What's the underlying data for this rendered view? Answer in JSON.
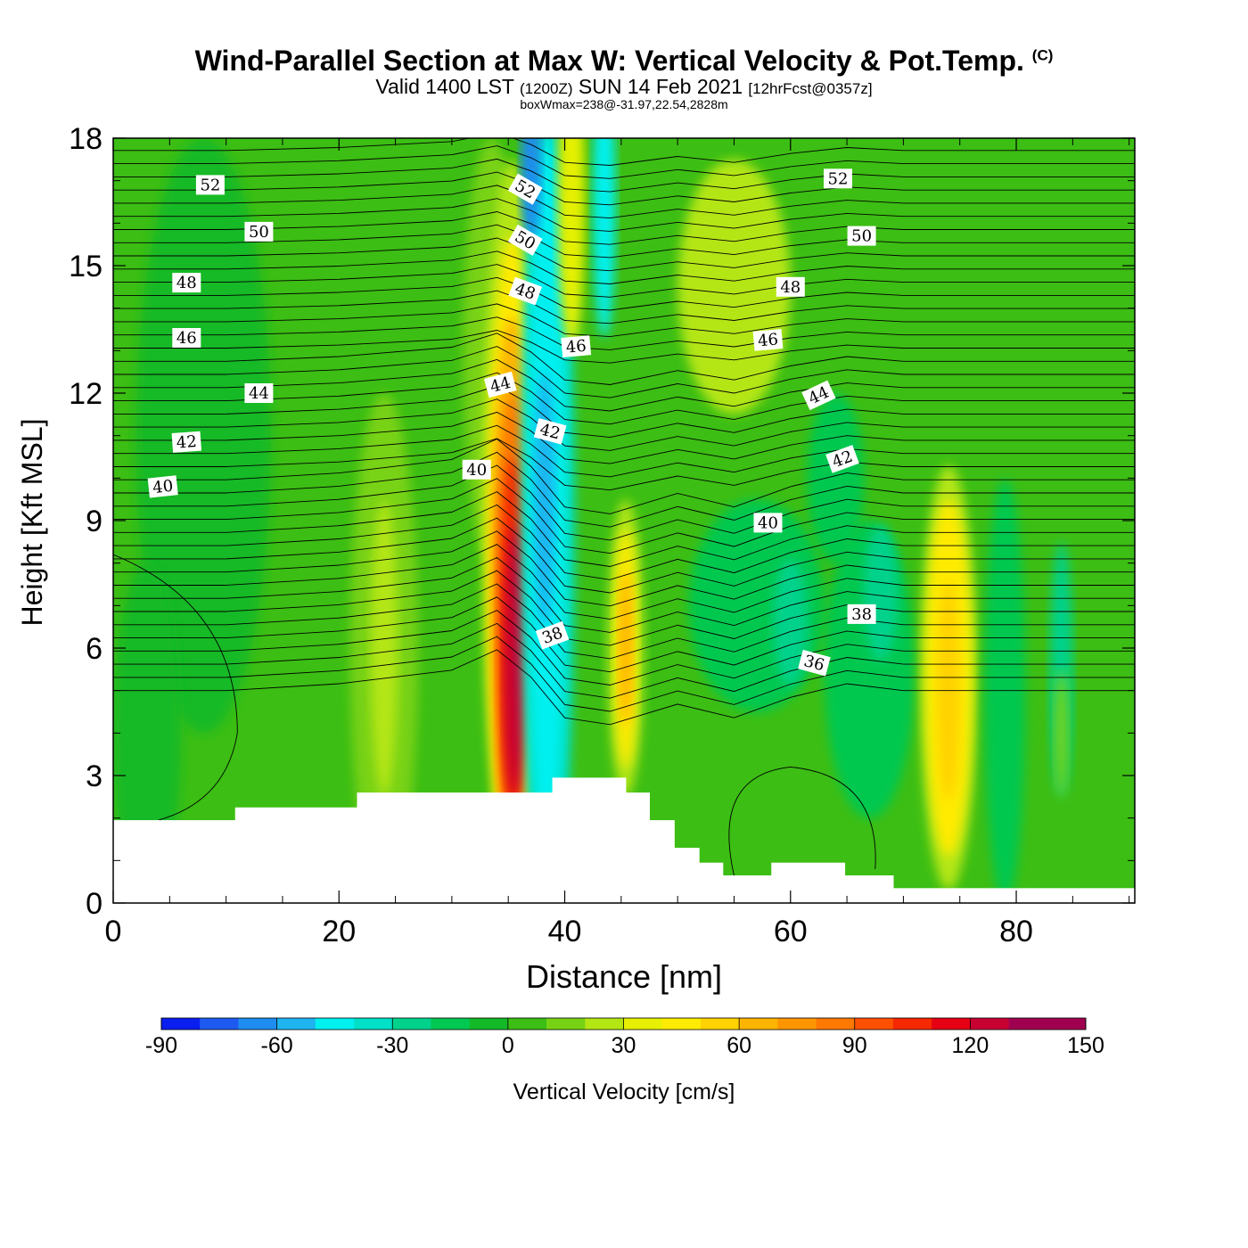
{
  "header": {
    "title": "Wind-Parallel Section at Max W: Vertical Velocity & Pot.Temp.",
    "copyright": "(C)",
    "subtitle_pre": "Valid 1400 LST",
    "subtitle_utc": "(1200Z)",
    "subtitle_date": "SUN 14 Feb 2021",
    "subtitle_fcst": "[12hrFcst@0357z]",
    "box_info": "boxWmax=238@-31.97,22.54,2828m"
  },
  "chart_data": {
    "type": "heatmap",
    "title": "Wind-Parallel Section at Max W: Vertical Velocity & Pot.Temp.",
    "xlabel": "Distance [nm]",
    "ylabel": "Height [Kft MSL]",
    "xlim": [
      0,
      90.5
    ],
    "ylim": [
      0,
      18
    ],
    "x_ticks": [
      0,
      20,
      40,
      60,
      80
    ],
    "y_ticks": [
      0,
      3,
      6,
      9,
      12,
      15,
      18
    ],
    "colorbar": {
      "label": "Vertical Velocity [cm/s]",
      "levels": [
        -90,
        -80,
        -70,
        -60,
        -50,
        -40,
        -30,
        -20,
        -10,
        0,
        10,
        20,
        30,
        40,
        50,
        60,
        70,
        80,
        90,
        100,
        110,
        120,
        130,
        140,
        150
      ],
      "tick_labels": [
        "-90",
        "-60",
        "-30",
        "0",
        "30",
        "60",
        "90",
        "120",
        "150"
      ],
      "colors": [
        "#0a1ef0",
        "#1e5af0",
        "#1e8cf0",
        "#1eb4f0",
        "#00f0f0",
        "#00e0c8",
        "#00d28c",
        "#00c850",
        "#14b928",
        "#3cbe14",
        "#78d214",
        "#b4e614",
        "#e6f000",
        "#ffeb00",
        "#ffd200",
        "#ffb400",
        "#ff9600",
        "#ff7800",
        "#ff5000",
        "#f52800",
        "#e60014",
        "#c80032",
        "#a00050",
        "#a00050"
      ]
    },
    "vertical_velocity_features": [
      {
        "name": "strong updraft",
        "x": 35.5,
        "z_range": [
          2.6,
          10.5
        ],
        "max_cm_s": 150
      },
      {
        "name": "downdraft",
        "x": 38.5,
        "z_range": [
          3,
          18
        ],
        "min_cm_s": -80
      },
      {
        "name": "upper updraft",
        "x": 40.5,
        "z_range": [
          14,
          18
        ],
        "max_cm_s": 40
      },
      {
        "name": "updraft",
        "x": 45.5,
        "z_range": [
          2.5,
          9
        ],
        "max_cm_s": 45
      },
      {
        "name": "updraft",
        "x": 74,
        "z_range": [
          1,
          9
        ],
        "max_cm_s": 50
      },
      {
        "name": "weak updraft",
        "x": 24,
        "z_range": [
          3,
          9.5
        ],
        "max_cm_s": 25
      }
    ],
    "terrain_kft": [
      {
        "x": [
          0,
          10.8
        ],
        "z": 1.95
      },
      {
        "x": [
          10.8,
          21.6
        ],
        "z": 2.25
      },
      {
        "x": [
          21.6,
          38.9
        ],
        "z": 2.6
      },
      {
        "x": [
          38.9,
          45.4
        ],
        "z": 2.95
      },
      {
        "x": [
          45.4,
          47.5
        ],
        "z": 2.6
      },
      {
        "x": [
          47.5,
          49.7
        ],
        "z": 1.95
      },
      {
        "x": [
          49.7,
          51.9
        ],
        "z": 1.3
      },
      {
        "x": [
          51.9,
          54.0
        ],
        "z": 0.95
      },
      {
        "x": [
          54.0,
          58.3
        ],
        "z": 0.65
      },
      {
        "x": [
          58.3,
          64.8
        ],
        "z": 0.95
      },
      {
        "x": [
          64.8,
          69.1
        ],
        "z": 0.65
      },
      {
        "x": [
          69.1,
          90.5
        ],
        "z": 0.35
      }
    ],
    "potential_temperature_labels": [
      {
        "value": "52",
        "x": 8.6,
        "z": 16.9,
        "rot": 0
      },
      {
        "value": "50",
        "x": 12.9,
        "z": 15.8,
        "rot": 0
      },
      {
        "value": "48",
        "x": 6.5,
        "z": 14.6,
        "rot": 0
      },
      {
        "value": "46",
        "x": 6.5,
        "z": 13.3,
        "rot": 0
      },
      {
        "value": "44",
        "x": 12.9,
        "z": 12.0,
        "rot": 0
      },
      {
        "value": "42",
        "x": 6.5,
        "z": 10.85,
        "rot": -4
      },
      {
        "value": "40",
        "x": 4.4,
        "z": 9.8,
        "rot": -6
      },
      {
        "value": "52",
        "x": 36.5,
        "z": 16.8,
        "rot": 30
      },
      {
        "value": "50",
        "x": 36.5,
        "z": 15.6,
        "rot": 30
      },
      {
        "value": "48",
        "x": 36.5,
        "z": 14.4,
        "rot": 20
      },
      {
        "value": "46",
        "x": 41.0,
        "z": 13.1,
        "rot": -5
      },
      {
        "value": "44",
        "x": 34.3,
        "z": 12.2,
        "rot": -15
      },
      {
        "value": "42",
        "x": 38.7,
        "z": 11.1,
        "rot": 15
      },
      {
        "value": "40",
        "x": 32.2,
        "z": 10.2,
        "rot": 0
      },
      {
        "value": "38",
        "x": 38.9,
        "z": 6.3,
        "rot": -20
      },
      {
        "value": "52",
        "x": 64.2,
        "z": 17.05,
        "rot": 0
      },
      {
        "value": "50",
        "x": 66.3,
        "z": 15.7,
        "rot": 0
      },
      {
        "value": "48",
        "x": 60.0,
        "z": 14.5,
        "rot": 0
      },
      {
        "value": "46",
        "x": 58.0,
        "z": 13.25,
        "rot": -5
      },
      {
        "value": "44",
        "x": 62.5,
        "z": 11.95,
        "rot": -25
      },
      {
        "value": "42",
        "x": 64.6,
        "z": 10.45,
        "rot": -20
      },
      {
        "value": "40",
        "x": 58.0,
        "z": 8.95,
        "rot": 0
      },
      {
        "value": "38",
        "x": 66.3,
        "z": 6.8,
        "rot": 0
      },
      {
        "value": "36",
        "x": 62.1,
        "z": 5.65,
        "rot": 15
      }
    ]
  }
}
